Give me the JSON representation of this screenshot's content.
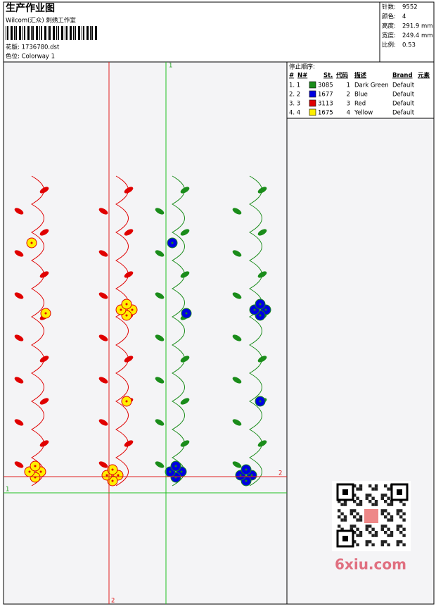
{
  "header": {
    "title": "生产作业图",
    "subtitle": "Wilcom(汇众) 刺绣工作室",
    "design": "花版: 1736780.dst",
    "colorway": "色位: Colorway 1"
  },
  "stats": [
    {
      "label": "针数:",
      "value": "9552"
    },
    {
      "label": "颜色:",
      "value": "4"
    },
    {
      "label": "高度:",
      "value": "291.9 mm"
    },
    {
      "label": "宽度:",
      "value": "249.4 mm"
    },
    {
      "label": "比例:",
      "value": "0.53"
    }
  ],
  "stop_sequence": {
    "title": "停止顺序:",
    "columns": [
      "#",
      "N#",
      "St.",
      "代码",
      "描述",
      "Brand",
      "元素"
    ],
    "rows": [
      {
        "order": "1. 1",
        "color": "#1a8c1a",
        "stitches": "3085",
        "code": "1",
        "description": "Dark Green",
        "brand": "Default"
      },
      {
        "order": "2. 2",
        "color": "#0000e0",
        "stitches": "1677",
        "code": "2",
        "description": "Blue",
        "brand": "Default"
      },
      {
        "order": "3. 3",
        "color": "#e00000",
        "stitches": "3113",
        "code": "3",
        "description": "Red",
        "brand": "Default"
      },
      {
        "order": "4. 4",
        "color": "#ffee00",
        "stitches": "1675",
        "code": "4",
        "description": "Yellow",
        "brand": "Default"
      }
    ]
  },
  "guides": {
    "top": "1",
    "bottom": "2",
    "right": "2",
    "left": "1"
  },
  "watermark": "6xiu.com"
}
